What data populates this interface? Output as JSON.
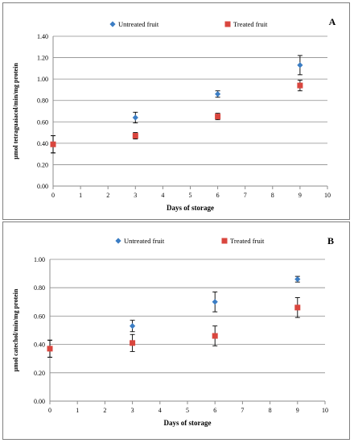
{
  "chart_data": [
    {
      "type": "scatter",
      "panel_label": "A",
      "xlabel": "Days of storage",
      "ylabel": "µmol tetraguaiacol/min/mg  protein",
      "xlim": [
        0,
        10
      ],
      "ylim": [
        0,
        1.4
      ],
      "xticks": [
        "0",
        "1",
        "2",
        "3",
        "4",
        "5",
        "6",
        "7",
        "8",
        "9",
        "10"
      ],
      "yticks": [
        "0.00",
        "0.20",
        "0.40",
        "0.60",
        "0.80",
        "1.00",
        "1.20",
        "1.40"
      ],
      "grid": true,
      "legend_position": "top",
      "series": [
        {
          "name": "Untreated fruit",
          "marker": "diamond",
          "color": "#3b7dc4",
          "points": [
            {
              "x": 0,
              "y": 0.39,
              "err": 0.08
            },
            {
              "x": 3,
              "y": 0.64,
              "err": 0.05
            },
            {
              "x": 6,
              "y": 0.86,
              "err": 0.03
            },
            {
              "x": 9,
              "y": 1.13,
              "err": 0.09
            }
          ]
        },
        {
          "name": "Treated fruit",
          "marker": "square",
          "color": "#d9463e",
          "points": [
            {
              "x": 0,
              "y": 0.39,
              "err": 0.08
            },
            {
              "x": 3,
              "y": 0.47,
              "err": 0.03
            },
            {
              "x": 6,
              "y": 0.65,
              "err": 0.03
            },
            {
              "x": 9,
              "y": 0.94,
              "err": 0.05
            }
          ]
        }
      ]
    },
    {
      "type": "scatter",
      "panel_label": "B",
      "xlabel": "Days of storage",
      "ylabel": "µmol catechol/min/mg  protein",
      "xlim": [
        0,
        10
      ],
      "ylim": [
        0,
        1.0
      ],
      "xticks": [
        "0",
        "1",
        "2",
        "3",
        "4",
        "5",
        "6",
        "7",
        "8",
        "9",
        "10"
      ],
      "yticks": [
        "0.00",
        "0.20",
        "0.40",
        "0.60",
        "0.80",
        "1.00"
      ],
      "grid": true,
      "legend_position": "top",
      "series": [
        {
          "name": "Untreated fruit",
          "marker": "diamond",
          "color": "#3b7dc4",
          "points": [
            {
              "x": 0,
              "y": 0.37,
              "err": 0.06
            },
            {
              "x": 3,
              "y": 0.53,
              "err": 0.04
            },
            {
              "x": 6,
              "y": 0.7,
              "err": 0.07
            },
            {
              "x": 9,
              "y": 0.86,
              "err": 0.02
            }
          ]
        },
        {
          "name": "Treated fruit",
          "marker": "square",
          "color": "#d9463e",
          "points": [
            {
              "x": 0,
              "y": 0.37,
              "err": 0.06
            },
            {
              "x": 3,
              "y": 0.41,
              "err": 0.06
            },
            {
              "x": 6,
              "y": 0.46,
              "err": 0.07
            },
            {
              "x": 9,
              "y": 0.66,
              "err": 0.07
            }
          ]
        }
      ]
    }
  ]
}
